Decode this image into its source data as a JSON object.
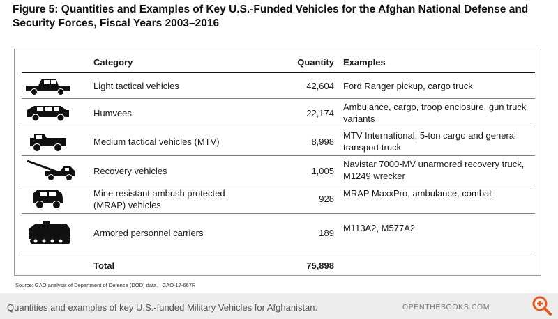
{
  "figure": {
    "title": "Figure 5: Quantities and Examples of Key U.S.-Funded Vehicles for the Afghan National Defense and Security Forces, Fiscal Years 2003–2016",
    "source": "Source: GAO analysis of Department of Defense (DOD) data.  |  GAO-17-667R"
  },
  "table": {
    "headers": {
      "category": "Category",
      "quantity": "Quantity",
      "examples": "Examples"
    },
    "rows": [
      {
        "icon": "pickup-truck-icon",
        "category": "Light tactical vehicles",
        "quantity": "42,604",
        "examples": "Ford Ranger pickup, cargo truck"
      },
      {
        "icon": "humvee-icon",
        "category": "Humvees",
        "quantity": "22,174",
        "examples": "Ambulance, cargo, troop enclosure, gun truck variants"
      },
      {
        "icon": "mtv-truck-icon",
        "category": "Medium tactical vehicles (MTV)",
        "quantity": "8,998",
        "examples": "MTV International, 5-ton cargo and general transport truck"
      },
      {
        "icon": "recovery-truck-icon",
        "category": "Recovery vehicles",
        "quantity": "1,005",
        "examples": "Navistar 7000-MV unarmored recovery truck, M1249 wrecker"
      },
      {
        "icon": "mrap-icon",
        "category": "Mine resistant ambush protected (MRAP) vehicles",
        "quantity": "928",
        "examples": "MRAP MaxxPro, ambulance, combat"
      },
      {
        "icon": "armored-carrier-icon",
        "category": "Armored personnel carriers",
        "quantity": "189",
        "examples": "M113A2, M577A2"
      }
    ],
    "total": {
      "label": "Total",
      "quantity": "75,898"
    }
  },
  "caption": {
    "text": "Quantities and examples of key U.S.-funded Military Vehicles for Afghanistan.",
    "site": "OPENTHEBOOKS.COM",
    "zoom_icon": "zoom-in-icon",
    "accent_color": "#e8581d"
  }
}
